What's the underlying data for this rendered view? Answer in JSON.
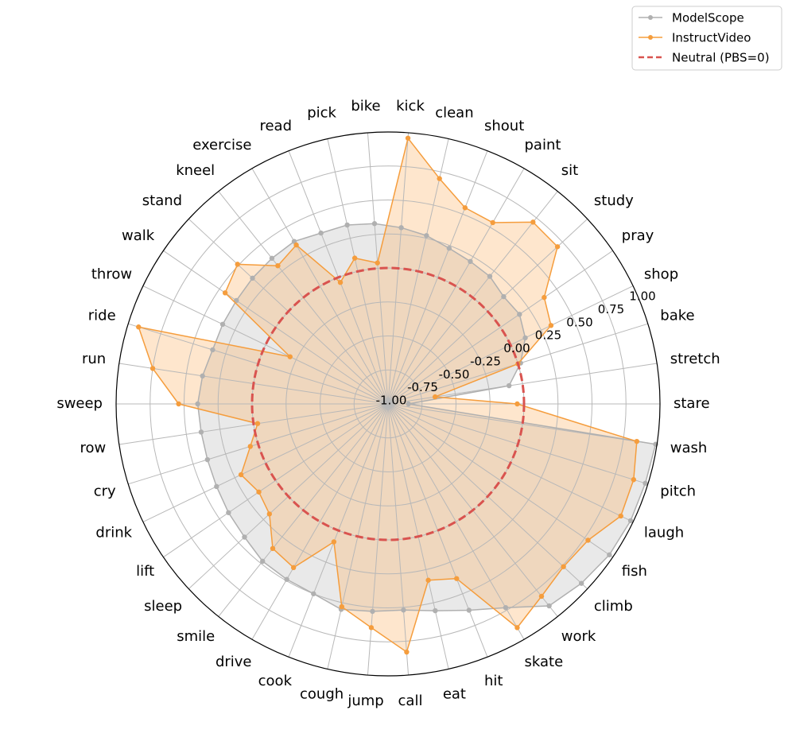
{
  "chart_data": {
    "type": "radar",
    "rlim": [
      -1.0,
      1.0
    ],
    "rticks": [
      "-1.00",
      "-0.75",
      "-0.50",
      "-0.25",
      "0.00",
      "0.25",
      "0.50",
      "0.75",
      "1.00"
    ],
    "categories": [
      "stare",
      "stretch",
      "bake",
      "shop",
      "pray",
      "study",
      "sit",
      "paint",
      "shout",
      "clean",
      "kick",
      "bike",
      "pick",
      "read",
      "exercise",
      "kneel",
      "stand",
      "walk",
      "throw",
      "ride",
      "run",
      "sweep",
      "row",
      "cry",
      "drink",
      "lift",
      "sleep",
      "smile",
      "drive",
      "cook",
      "cough",
      "jump",
      "call",
      "eat",
      "hit",
      "skate",
      "work",
      "climb",
      "fish",
      "laugh",
      "pitch",
      "wash"
    ],
    "series": [
      {
        "name": "ModelScope",
        "color": "#b0b0b0",
        "values": [
          -0.85,
          -0.1,
          0.02,
          0.12,
          0.17,
          0.16,
          0.2,
          0.21,
          0.23,
          0.27,
          0.3,
          0.33,
          0.35,
          0.35,
          0.38,
          0.37,
          0.36,
          0.35,
          0.35,
          0.35,
          0.38,
          0.4,
          0.39,
          0.39,
          0.4,
          0.42,
          0.44,
          0.48,
          0.49,
          0.5,
          0.55,
          0.53,
          0.52,
          0.56,
          0.63,
          0.73,
          0.9,
          0.94,
          0.97,
          0.98,
          0.98,
          0.99
        ]
      },
      {
        "name": "InstructVideo",
        "color": "#f59d3d",
        "values": [
          -0.05,
          -0.65,
          0.0,
          0.33,
          0.39,
          0.7,
          0.71,
          0.54,
          0.55,
          0.7,
          0.96,
          0.04,
          0.1,
          -0.04,
          0.35,
          0.3,
          0.51,
          0.45,
          -0.2,
          0.92,
          0.75,
          0.54,
          -0.03,
          0.06,
          0.2,
          0.15,
          0.19,
          0.36,
          0.39,
          0.09,
          0.53,
          0.65,
          0.83,
          0.33,
          0.38,
          0.9,
          0.81,
          0.76,
          0.78,
          0.9,
          0.89,
          0.85
        ]
      }
    ],
    "neutral": {
      "name": "Neutral (PBS=0)",
      "value": 0.0,
      "color": "#d9534f"
    },
    "legend_position": "upper-right",
    "grid": true
  }
}
